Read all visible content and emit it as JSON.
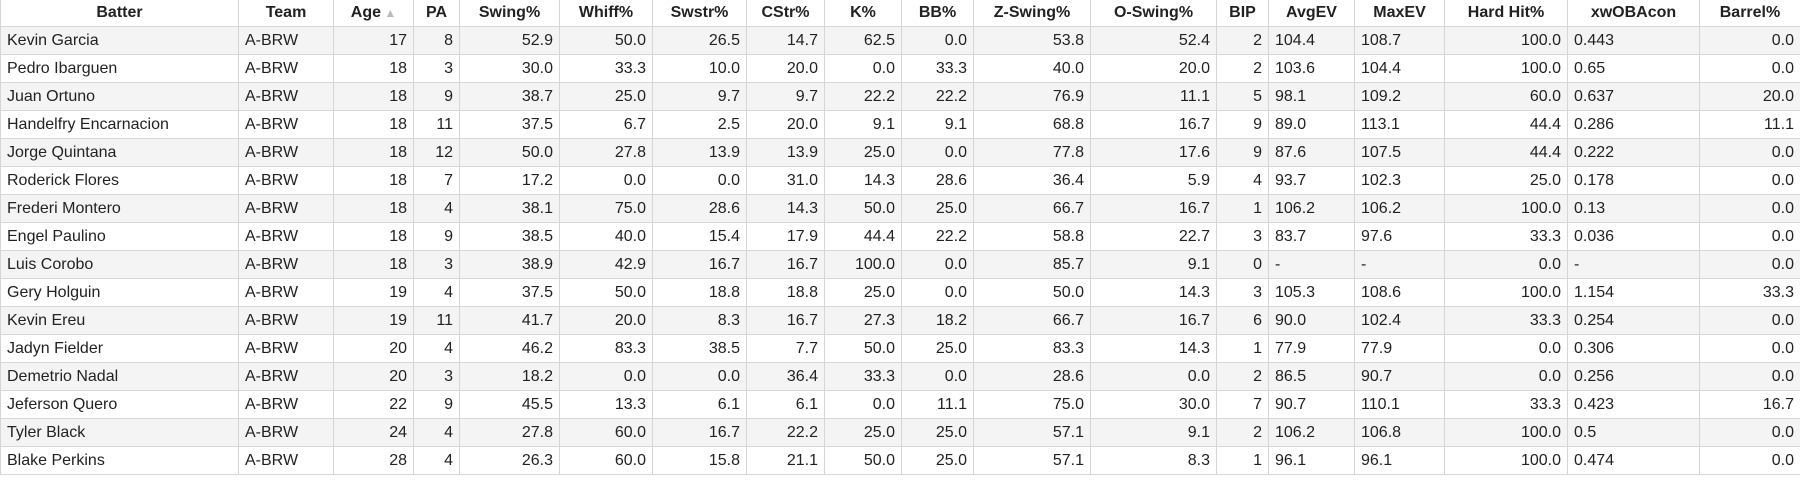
{
  "table": {
    "header": [
      "Batter",
      "Team",
      "Age",
      "PA",
      "Swing%",
      "Whiff%",
      "Swstr%",
      "CStr%",
      "K%",
      "BB%",
      "Z-Swing%",
      "O-Swing%",
      "BIP",
      "AvgEV",
      "MaxEV",
      "Hard Hit%",
      "xwOBAcon",
      "Barrel%"
    ],
    "rows": [
      [
        "Kevin Garcia",
        "A-BRW",
        "17",
        "8",
        "52.9",
        "50.0",
        "26.5",
        "14.7",
        "62.5",
        "0.0",
        "53.8",
        "52.4",
        "2",
        "104.4",
        "108.7",
        "100.0",
        "0.443",
        "0.0"
      ],
      [
        "Pedro Ibarguen",
        "A-BRW",
        "18",
        "3",
        "30.0",
        "33.3",
        "10.0",
        "20.0",
        "0.0",
        "33.3",
        "40.0",
        "20.0",
        "2",
        "103.6",
        "104.4",
        "100.0",
        "0.65",
        "0.0"
      ],
      [
        "Juan Ortuno",
        "A-BRW",
        "18",
        "9",
        "38.7",
        "25.0",
        "9.7",
        "9.7",
        "22.2",
        "22.2",
        "76.9",
        "11.1",
        "5",
        "98.1",
        "109.2",
        "60.0",
        "0.637",
        "20.0"
      ],
      [
        "Handelfry Encarnacion",
        "A-BRW",
        "18",
        "11",
        "37.5",
        "6.7",
        "2.5",
        "20.0",
        "9.1",
        "9.1",
        "68.8",
        "16.7",
        "9",
        "89.0",
        "113.1",
        "44.4",
        "0.286",
        "11.1"
      ],
      [
        "Jorge Quintana",
        "A-BRW",
        "18",
        "12",
        "50.0",
        "27.8",
        "13.9",
        "13.9",
        "25.0",
        "0.0",
        "77.8",
        "17.6",
        "9",
        "87.6",
        "107.5",
        "44.4",
        "0.222",
        "0.0"
      ],
      [
        "Roderick Flores",
        "A-BRW",
        "18",
        "7",
        "17.2",
        "0.0",
        "0.0",
        "31.0",
        "14.3",
        "28.6",
        "36.4",
        "5.9",
        "4",
        "93.7",
        "102.3",
        "25.0",
        "0.178",
        "0.0"
      ],
      [
        "Frederi Montero",
        "A-BRW",
        "18",
        "4",
        "38.1",
        "75.0",
        "28.6",
        "14.3",
        "50.0",
        "25.0",
        "66.7",
        "16.7",
        "1",
        "106.2",
        "106.2",
        "100.0",
        "0.13",
        "0.0"
      ],
      [
        "Engel Paulino",
        "A-BRW",
        "18",
        "9",
        "38.5",
        "40.0",
        "15.4",
        "17.9",
        "44.4",
        "22.2",
        "58.8",
        "22.7",
        "3",
        "83.7",
        "97.6",
        "33.3",
        "0.036",
        "0.0"
      ],
      [
        "Luis Corobo",
        "A-BRW",
        "18",
        "3",
        "38.9",
        "42.9",
        "16.7",
        "16.7",
        "100.0",
        "0.0",
        "85.7",
        "9.1",
        "0",
        "-",
        "-",
        "0.0",
        "-",
        "0.0"
      ],
      [
        "Gery Holguin",
        "A-BRW",
        "19",
        "4",
        "37.5",
        "50.0",
        "18.8",
        "18.8",
        "25.0",
        "0.0",
        "50.0",
        "14.3",
        "3",
        "105.3",
        "108.6",
        "100.0",
        "1.154",
        "33.3"
      ],
      [
        "Kevin Ereu",
        "A-BRW",
        "19",
        "11",
        "41.7",
        "20.0",
        "8.3",
        "16.7",
        "27.3",
        "18.2",
        "66.7",
        "16.7",
        "6",
        "90.0",
        "102.4",
        "33.3",
        "0.254",
        "0.0"
      ],
      [
        "Jadyn Fielder",
        "A-BRW",
        "20",
        "4",
        "46.2",
        "83.3",
        "38.5",
        "7.7",
        "50.0",
        "25.0",
        "83.3",
        "14.3",
        "1",
        "77.9",
        "77.9",
        "0.0",
        "0.306",
        "0.0"
      ],
      [
        "Demetrio Nadal",
        "A-BRW",
        "20",
        "3",
        "18.2",
        "0.0",
        "0.0",
        "36.4",
        "33.3",
        "0.0",
        "28.6",
        "0.0",
        "2",
        "86.5",
        "90.7",
        "0.0",
        "0.256",
        "0.0"
      ],
      [
        "Jeferson Quero",
        "A-BRW",
        "22",
        "9",
        "45.5",
        "13.3",
        "6.1",
        "6.1",
        "0.0",
        "11.1",
        "75.0",
        "30.0",
        "7",
        "90.7",
        "110.1",
        "33.3",
        "0.423",
        "16.7"
      ],
      [
        "Tyler Black",
        "A-BRW",
        "24",
        "4",
        "27.8",
        "60.0",
        "16.7",
        "22.2",
        "25.0",
        "25.0",
        "57.1",
        "9.1",
        "2",
        "106.2",
        "106.8",
        "100.0",
        "0.5",
        "0.0"
      ],
      [
        "Blake Perkins",
        "A-BRW",
        "28",
        "4",
        "26.3",
        "60.0",
        "15.8",
        "21.1",
        "50.0",
        "25.0",
        "57.1",
        "8.3",
        "1",
        "96.1",
        "96.1",
        "100.0",
        "0.474",
        "0.0"
      ]
    ]
  }
}
